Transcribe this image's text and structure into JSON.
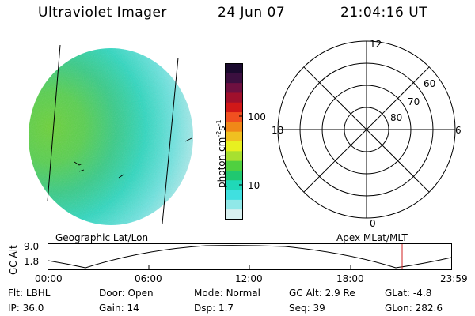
{
  "header": {
    "instrument": "Ultraviolet Imager",
    "date": "24 Jun 07",
    "time": "21:04:16 UT"
  },
  "image_panel": {
    "label": "Geographic Lat/Lon"
  },
  "color_bar": {
    "unit_label": "photon cm",
    "unit_sup_1": "-2",
    "unit_s": "s",
    "unit_sup_2": "-1",
    "ticks": [
      "100",
      "10"
    ],
    "colors": [
      "#1a0a2e",
      "#3b0f3f",
      "#6e1040",
      "#a0102c",
      "#d01818",
      "#f05020",
      "#f08818",
      "#f0c020",
      "#e8f020",
      "#a8e030",
      "#50d040",
      "#20c870",
      "#20d8b8",
      "#40e0e0",
      "#90e8e8",
      "#d8f0f0"
    ]
  },
  "polar_plot": {
    "label": "Apex MLat/MLT",
    "mlt_labels": {
      "top": "12",
      "left": "18",
      "right": "6",
      "bottom": "0"
    },
    "lat_labels": [
      "60",
      "70",
      "80"
    ]
  },
  "orbit_plot": {
    "ylabel": "GC Alt",
    "y_ticks": [
      "9.0",
      "1.8"
    ],
    "x_ticks": [
      "00:00",
      "06:00",
      "12:00",
      "18:00",
      "23:59"
    ],
    "marker_color": "#d02020"
  },
  "footer": {
    "row1": [
      {
        "key": "Flt:",
        "val": "LBHL"
      },
      {
        "key": "Door:",
        "val": "Open"
      },
      {
        "key": "Mode:",
        "val": "Normal"
      },
      {
        "key": "GC Alt:",
        "val": "2.9 Re"
      },
      {
        "key": "GLat:",
        "val": "-4.8"
      }
    ],
    "row2": [
      {
        "key": "IP:",
        "val": "36.0"
      },
      {
        "key": "Gain:",
        "val": "14"
      },
      {
        "key": "Dsp:",
        "val": "1.7"
      },
      {
        "key": "Seq:",
        "val": "39"
      },
      {
        "key": "GLon:",
        "val": "282.6"
      }
    ]
  }
}
